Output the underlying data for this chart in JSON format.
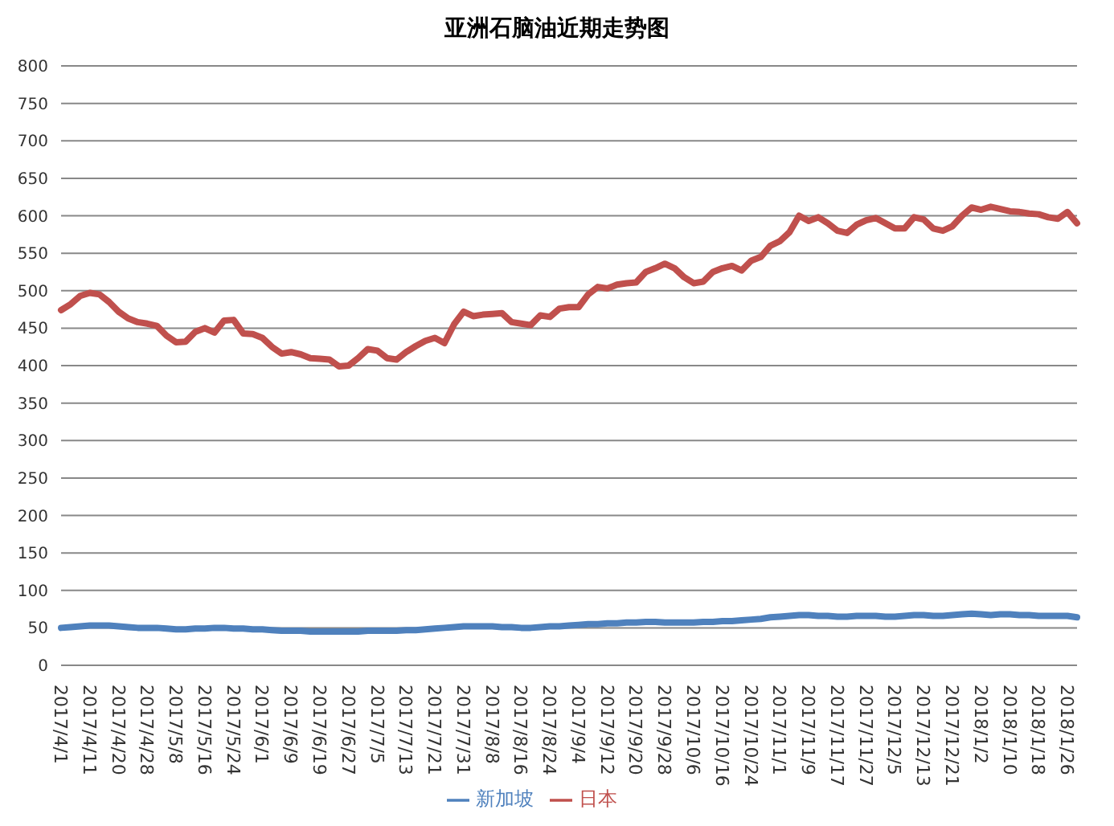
{
  "chart_data": {
    "type": "line",
    "title": "亚洲石脑油近期走势图",
    "categories": [
      "2017/4/1",
      null,
      null,
      "2017/4/11",
      null,
      null,
      "2017/4/20",
      null,
      null,
      "2017/4/28",
      null,
      null,
      "2017/5/8",
      null,
      null,
      "2017/5/16",
      null,
      null,
      "2017/5/24",
      null,
      null,
      "2017/6/1",
      null,
      null,
      "2017/6/9",
      null,
      null,
      "2017/6/19",
      null,
      null,
      "2017/6/27",
      null,
      null,
      "2017/7/5",
      null,
      null,
      "2017/7/13",
      null,
      null,
      "2017/7/21",
      null,
      null,
      "2017/7/31",
      null,
      null,
      "2017/8/8",
      null,
      null,
      "2017/8/16",
      null,
      null,
      "2017/8/24",
      null,
      null,
      "2017/9/4",
      null,
      null,
      "2017/9/12",
      null,
      null,
      "2017/9/20",
      null,
      null,
      "2017/9/28",
      null,
      null,
      "2017/10/6",
      null,
      null,
      "2017/10/16",
      null,
      null,
      "2017/10/24",
      null,
      null,
      "2017/11/1",
      null,
      null,
      "2017/11/9",
      null,
      null,
      "2017/11/17",
      null,
      null,
      "2017/11/27",
      null,
      null,
      "2017/12/5",
      null,
      null,
      "2017/12/13",
      null,
      null,
      "2017/12/21",
      null,
      null,
      "2018/1/2",
      null,
      null,
      "2018/1/10",
      null,
      null,
      "2018/1/18",
      null,
      null,
      "2018/1/26",
      null
    ],
    "series": [
      {
        "name": "新加坡",
        "color": "#4f81bd",
        "values": [
          50,
          51,
          52,
          53,
          53,
          53,
          52,
          51,
          50,
          50,
          50,
          49,
          48,
          48,
          49,
          49,
          50,
          50,
          49,
          49,
          48,
          48,
          47,
          46,
          46,
          46,
          45,
          45,
          45,
          45,
          45,
          45,
          46,
          46,
          46,
          46,
          47,
          47,
          48,
          49,
          50,
          51,
          52,
          52,
          52,
          52,
          51,
          51,
          50,
          50,
          51,
          52,
          52,
          53,
          54,
          55,
          55,
          56,
          56,
          57,
          57,
          58,
          58,
          57,
          57,
          57,
          57,
          58,
          58,
          59,
          59,
          60,
          61,
          62,
          64,
          65,
          66,
          67,
          67,
          66,
          66,
          65,
          65,
          66,
          66,
          66,
          65,
          65,
          66,
          67,
          67,
          66,
          66,
          67,
          68,
          69,
          68,
          67,
          68,
          68,
          67,
          67,
          66,
          66,
          66,
          66,
          64
        ]
      },
      {
        "name": "日本",
        "color": "#c0504d",
        "values": [
          474,
          482,
          493,
          497,
          495,
          485,
          472,
          463,
          458,
          456,
          453,
          440,
          431,
          432,
          445,
          450,
          444,
          460,
          461,
          443,
          442,
          437,
          425,
          416,
          418,
          415,
          410,
          409,
          408,
          399,
          400,
          410,
          422,
          420,
          410,
          408,
          418,
          426,
          433,
          437,
          430,
          455,
          472,
          466,
          468,
          469,
          470,
          458,
          456,
          454,
          467,
          465,
          476,
          478,
          478,
          495,
          505,
          503,
          508,
          510,
          511,
          525,
          530,
          536,
          530,
          518,
          510,
          512,
          525,
          530,
          533,
          527,
          540,
          545,
          560,
          566,
          578,
          600,
          593,
          598,
          590,
          580,
          577,
          588,
          594,
          597,
          590,
          583,
          583,
          598,
          595,
          583,
          580,
          586,
          600,
          611,
          608,
          612,
          609,
          606,
          605,
          603,
          602,
          598,
          596,
          605,
          590
        ]
      }
    ],
    "ylim": [
      0,
      800
    ],
    "yticks": [
      0,
      50,
      100,
      150,
      200,
      250,
      300,
      350,
      400,
      450,
      500,
      550,
      600,
      650,
      700,
      750,
      800
    ],
    "grid": "y",
    "legend": "bottom"
  }
}
